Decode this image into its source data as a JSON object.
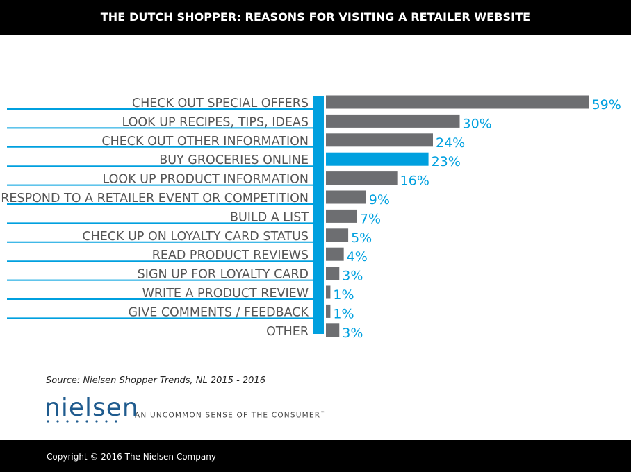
{
  "header": {
    "title": "THE DUTCH SHOPPER: REASONS FOR VISITING A RETAILER WEBSITE"
  },
  "chart_data": {
    "type": "bar",
    "orientation": "horizontal",
    "title": "THE DUTCH SHOPPER: REASONS FOR VISITING A RETAILER WEBSITE",
    "categories": [
      "CHECK OUT SPECIAL OFFERS",
      "LOOK UP RECIPES, TIPS, IDEAS",
      "CHECK OUT OTHER INFORMATION",
      "BUY GROCERIES ONLINE",
      "LOOK UP PRODUCT INFORMATION",
      "RESPOND TO A RETAILER EVENT OR COMPETITION",
      "BUILD A LIST",
      "CHECK UP ON LOYALTY CARD STATUS",
      "READ PRODUCT REVIEWS",
      "SIGN UP FOR LOYALTY CARD",
      "WRITE A PRODUCT REVIEW",
      "GIVE COMMENTS / FEEDBACK",
      "OTHER"
    ],
    "values": [
      59,
      30,
      24,
      23,
      16,
      9,
      7,
      5,
      4,
      3,
      1,
      1,
      3
    ],
    "value_labels": [
      "59%",
      "30%",
      "24%",
      "23%",
      "16%",
      "9%",
      "7%",
      "5%",
      "4%",
      "3%",
      "1%",
      "1%",
      "3%"
    ],
    "highlight_index": 3,
    "colors": {
      "bar": "#6d6e71",
      "highlight": "#00a0df",
      "label": "#00a0df",
      "text": "#555555",
      "axis": "#00a0df"
    },
    "xlim": [
      0,
      60
    ],
    "grid": false,
    "legend": "none"
  },
  "source": "Source: Nielsen Shopper Trends, NL 2015 - 2016",
  "brand": {
    "logo_text": "nielsen",
    "tagline": "AN UNCOMMON SENSE OF THE CONSUMER",
    "tagline_mark": "™"
  },
  "footer": {
    "copyright": "Copyright © 2016 The Nielsen Company"
  }
}
